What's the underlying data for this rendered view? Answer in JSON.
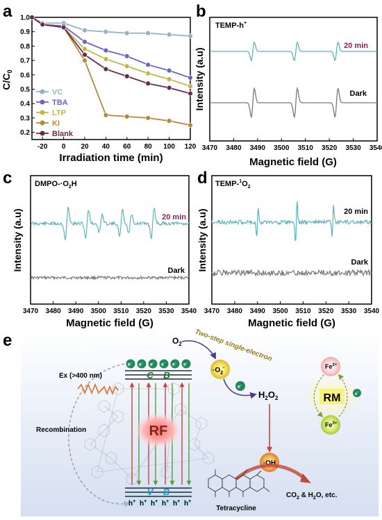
{
  "panels": {
    "a": "a",
    "b": "b",
    "c": "c",
    "d": "d",
    "e": "e"
  },
  "chart_data": [
    {
      "panel": "a",
      "type": "line",
      "xlabel": "Irradiation time (min)",
      "ylabel": "C/C",
      "ylabel_sub": "0",
      "xlim": [
        -30,
        120
      ],
      "ylim": [
        0.15,
        1.0
      ],
      "xticks": [
        "-20",
        "0",
        "20",
        "40",
        "60",
        "80",
        "100",
        "120"
      ],
      "yticks": [
        "0.2",
        "0.3",
        "0.4",
        "0.5",
        "0.6",
        "0.7",
        "0.8",
        "0.9",
        "1.0"
      ],
      "x": [
        -30,
        -20,
        0,
        20,
        40,
        60,
        80,
        100,
        120
      ],
      "legend_position": "bottom-left",
      "series": [
        {
          "name": "VC",
          "color": "#8fb4c4",
          "values": [
            1.0,
            0.96,
            0.96,
            0.91,
            0.9,
            0.89,
            0.89,
            0.88,
            0.87
          ]
        },
        {
          "name": "TBA",
          "color": "#6b63c8",
          "values": [
            1.0,
            0.95,
            0.94,
            0.83,
            0.77,
            0.73,
            0.67,
            0.63,
            0.58
          ]
        },
        {
          "name": "LTP",
          "color": "#c2b64a",
          "values": [
            1.0,
            0.95,
            0.93,
            0.78,
            0.71,
            0.66,
            0.61,
            0.57,
            0.52
          ]
        },
        {
          "name": "KI",
          "color": "#b8883a",
          "values": [
            1.0,
            0.95,
            0.93,
            0.7,
            0.32,
            0.31,
            0.3,
            0.28,
            0.25
          ]
        },
        {
          "name": "Blank",
          "color": "#6b2a4a",
          "values": [
            1.0,
            0.95,
            0.93,
            0.74,
            0.64,
            0.59,
            0.54,
            0.51,
            0.47
          ]
        }
      ]
    },
    {
      "panel": "b",
      "type": "line",
      "title": "TEMP-h",
      "title_sup": "+",
      "xlabel": "Magnetic field (G)",
      "ylabel": "Intensity (a.u)",
      "xlim": [
        3470,
        3540
      ],
      "xticks": [
        "3470",
        "3480",
        "3490",
        "3500",
        "3510",
        "3520",
        "3530",
        "3540"
      ],
      "series": [
        {
          "name": "20 min",
          "color": "#5bb3bd",
          "peaks_at": [
            3488,
            3506,
            3523
          ]
        },
        {
          "name": "Dark",
          "color": "#777777",
          "peaks_at": [
            3488,
            3506,
            3523
          ]
        }
      ]
    },
    {
      "panel": "c",
      "type": "line",
      "title": "DMPO-·O",
      "title_sub": "2",
      "title_end": "H",
      "xlabel": "Magnetic field (G)",
      "ylabel": "Intensity (a.u)",
      "xlim": [
        3470,
        3540
      ],
      "xticks": [
        "3470",
        "3480",
        "3490",
        "3500",
        "3510",
        "3520",
        "3530",
        "3540"
      ],
      "series": [
        {
          "name": "20 min",
          "color": "#5bb3bd",
          "peaks_at": [
            3486,
            3495,
            3501,
            3510,
            3514,
            3524
          ]
        },
        {
          "name": "Dark",
          "color": "#777777"
        }
      ]
    },
    {
      "panel": "d",
      "type": "line",
      "title": "TEMP-",
      "title_sup": "1",
      "title_end": "O",
      "title_sub": "2",
      "xlabel": "Magnetic field (G)",
      "ylabel": "Intensity (a.u)",
      "xlim": [
        3470,
        3540
      ],
      "xticks": [
        "3470",
        "3480",
        "3490",
        "3500",
        "3510",
        "3520",
        "3530",
        "3540"
      ],
      "series": [
        {
          "name": "20 min",
          "color": "#5bb3bd",
          "peaks_at": [
            3490,
            3507,
            3523
          ]
        },
        {
          "name": "Dark",
          "color": "#777777"
        }
      ]
    }
  ],
  "schematic": {
    "o2": "O",
    "o2_sub": "2",
    "two_step": "Two-step single-electron",
    "superoxide": "·O",
    "superoxide_sub": "2",
    "superoxide_sup": "-",
    "h2o2": "H",
    "h2o2_a": "2",
    "h2o2_b": "O",
    "h2o2_c": "2",
    "oh": "·OH",
    "ex": "Ex (>400 nm)",
    "cb": "C    B",
    "vb": "V    B",
    "rf": "RF",
    "recombination": "Recombination",
    "tetracycline": "Tetracycline",
    "products": "CO",
    "products_sub": "2",
    "products_end": " & H",
    "products_sub2": "2",
    "products_tail": "O, etc.",
    "rm": "RM",
    "fe2": "Fe",
    "fe2_sup": "2+",
    "fe3": "Fe",
    "fe3_sup": "3+",
    "electron": "e",
    "electron_sup": "-",
    "hole": "h",
    "hole_sup": "+"
  }
}
